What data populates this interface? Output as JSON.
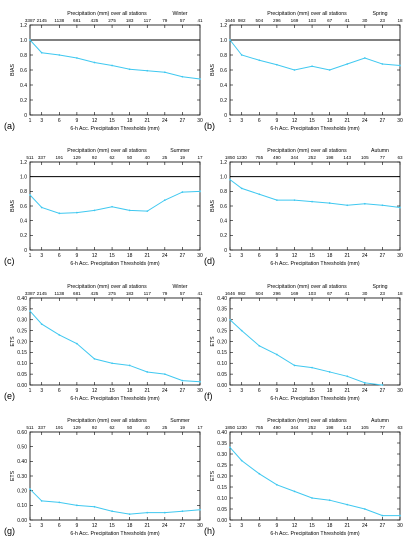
{
  "chart_data": [
    {
      "type": "line",
      "panel_label": "(a)",
      "season": "Winter",
      "xlabel": "6-h Acc. Precipitation Thresholds (mm)",
      "ylabel": "BIAS",
      "top_title": "Precipitation (mm) over all stations",
      "x": [
        1,
        3,
        6,
        9,
        12,
        15,
        18,
        21,
        24,
        27,
        30
      ],
      "x_ticks": [
        "1",
        "3",
        "6",
        "9",
        "12",
        "15",
        "18",
        "21",
        "24",
        "27",
        "30"
      ],
      "top_counts": [
        "3387",
        "2145",
        "1138",
        "681",
        "425",
        "275",
        "183",
        "117",
        "79",
        "57",
        "41"
      ],
      "ylim": [
        0,
        1.2
      ],
      "y_ticks": [
        "0",
        "0.2",
        "0.4",
        "0.6",
        "0.8",
        "1.0",
        "1.2"
      ],
      "ref_line": 1.0,
      "values": [
        1.0,
        0.83,
        0.8,
        0.76,
        0.7,
        0.66,
        0.61,
        0.59,
        0.57,
        0.51,
        0.48
      ]
    },
    {
      "type": "line",
      "panel_label": "(b)",
      "season": "Spring",
      "xlabel": "6-h Acc. Precipitation Thresholds (mm)",
      "ylabel": "BIAS",
      "top_title": "Precipitation (mm) over all stations",
      "x": [
        1,
        3,
        6,
        9,
        12,
        15,
        18,
        21,
        24,
        27,
        30
      ],
      "x_ticks": [
        "1",
        "3",
        "6",
        "9",
        "12",
        "15",
        "18",
        "21",
        "24",
        "27",
        "30"
      ],
      "top_counts": [
        "1646",
        "982",
        "504",
        "296",
        "169",
        "103",
        "67",
        "41",
        "30",
        "23",
        "18"
      ],
      "ylim": [
        0,
        1.2
      ],
      "y_ticks": [
        "0",
        "0.2",
        "0.4",
        "0.6",
        "0.8",
        "1.0",
        "1.2"
      ],
      "ref_line": 1.0,
      "values": [
        1.0,
        0.8,
        0.73,
        0.67,
        0.6,
        0.65,
        0.6,
        0.68,
        0.76,
        0.68,
        0.66
      ]
    },
    {
      "type": "line",
      "panel_label": "(c)",
      "season": "Summer",
      "xlabel": "6-h Acc. Precipitation Thresholds (mm)",
      "ylabel": "BIAS",
      "top_title": "Precipitation (mm) over all stations",
      "x": [
        1,
        3,
        6,
        9,
        12,
        15,
        18,
        21,
        24,
        27,
        30
      ],
      "x_ticks": [
        "1",
        "3",
        "6",
        "9",
        "12",
        "15",
        "18",
        "21",
        "24",
        "27",
        "30"
      ],
      "top_counts": [
        "511",
        "337",
        "191",
        "129",
        "92",
        "62",
        "50",
        "40",
        "25",
        "19",
        "17"
      ],
      "ylim": [
        0,
        1.2
      ],
      "y_ticks": [
        "0",
        "0.2",
        "0.4",
        "0.6",
        "0.8",
        "1.0",
        "1.2"
      ],
      "ref_line": 1.0,
      "values": [
        0.75,
        0.58,
        0.5,
        0.51,
        0.54,
        0.59,
        0.54,
        0.53,
        0.68,
        0.79,
        0.8
      ]
    },
    {
      "type": "line",
      "panel_label": "(d)",
      "season": "Autumn",
      "xlabel": "6-h Acc. Precipitation Thresholds (mm)",
      "ylabel": "BIAS",
      "top_title": "Precipitation (mm) over all stations",
      "x": [
        1,
        3,
        6,
        9,
        12,
        15,
        18,
        21,
        24,
        27,
        30
      ],
      "x_ticks": [
        "1",
        "3",
        "6",
        "9",
        "12",
        "15",
        "18",
        "21",
        "24",
        "27",
        "30"
      ],
      "top_counts": [
        "1850",
        "1230",
        "755",
        "490",
        "344",
        "252",
        "198",
        "143",
        "105",
        "77",
        "63"
      ],
      "ylim": [
        0,
        1.2
      ],
      "y_ticks": [
        "0",
        "0.2",
        "0.4",
        "0.6",
        "0.8",
        "1.0",
        "1.2"
      ],
      "ref_line": 1.0,
      "values": [
        0.96,
        0.84,
        0.76,
        0.68,
        0.68,
        0.66,
        0.64,
        0.61,
        0.63,
        0.61,
        0.58
      ]
    },
    {
      "type": "line",
      "panel_label": "(e)",
      "season": "Winter",
      "xlabel": "6-h Acc. Precipitation Thresholds (mm)",
      "ylabel": "ETS",
      "top_title": "Precipitation (mm) over all stations",
      "x": [
        1,
        3,
        6,
        9,
        12,
        15,
        18,
        21,
        24,
        27,
        30
      ],
      "x_ticks": [
        "1",
        "3",
        "6",
        "9",
        "12",
        "15",
        "18",
        "21",
        "24",
        "27",
        "30"
      ],
      "top_counts": [
        "3387",
        "2145",
        "1138",
        "681",
        "425",
        "275",
        "183",
        "117",
        "79",
        "57",
        "41"
      ],
      "ylim": [
        0,
        0.4
      ],
      "y_ticks": [
        "0.00",
        "0.05",
        "0.10",
        "0.15",
        "0.20",
        "0.25",
        "0.30",
        "0.35",
        "0.40"
      ],
      "ref_line": null,
      "values": [
        0.34,
        0.28,
        0.23,
        0.19,
        0.12,
        0.1,
        0.09,
        0.06,
        0.05,
        0.02,
        0.015
      ]
    },
    {
      "type": "line",
      "panel_label": "(f)",
      "season": "Spring",
      "xlabel": "6-h Acc. Precipitation Thresholds (mm)",
      "ylabel": "ETS",
      "top_title": "Precipitation (mm) over all stations",
      "x": [
        1,
        3,
        6,
        9,
        12,
        15,
        18,
        21,
        24,
        27,
        30
      ],
      "x_ticks": [
        "1",
        "3",
        "6",
        "9",
        "12",
        "15",
        "18",
        "21",
        "24",
        "27",
        "30"
      ],
      "top_counts": [
        "1646",
        "982",
        "504",
        "296",
        "169",
        "103",
        "67",
        "41",
        "30",
        "23",
        "18"
      ],
      "ylim": [
        0,
        0.4
      ],
      "y_ticks": [
        "0.00",
        "0.05",
        "0.10",
        "0.15",
        "0.20",
        "0.25",
        "0.30",
        "0.35",
        "0.40"
      ],
      "ref_line": null,
      "values": [
        0.3,
        0.25,
        0.18,
        0.14,
        0.09,
        0.08,
        0.06,
        0.04,
        0.01,
        0.0,
        null
      ]
    },
    {
      "type": "line",
      "panel_label": "(g)",
      "season": "Summer",
      "xlabel": "6-h Acc. Precipitation Thresholds (mm)",
      "ylabel": "ETS",
      "top_title": "Precipitation (mm) over all stations",
      "x": [
        1,
        3,
        6,
        9,
        12,
        15,
        18,
        21,
        24,
        27,
        30
      ],
      "x_ticks": [
        "1",
        "3",
        "6",
        "9",
        "12",
        "15",
        "18",
        "21",
        "24",
        "27",
        "30"
      ],
      "top_counts": [
        "511",
        "337",
        "191",
        "129",
        "92",
        "62",
        "50",
        "40",
        "25",
        "19",
        "17"
      ],
      "ylim": [
        0,
        0.6
      ],
      "y_ticks": [
        "0.00",
        "0.10",
        "0.20",
        "0.30",
        "0.40",
        "0.50",
        "0.60"
      ],
      "ref_line": null,
      "values": [
        0.21,
        0.13,
        0.12,
        0.1,
        0.09,
        0.06,
        0.04,
        0.05,
        0.05,
        0.06,
        0.07
      ]
    },
    {
      "type": "line",
      "panel_label": "(h)",
      "season": "Autumn",
      "xlabel": "6-h Acc. Precipitation Thresholds (mm)",
      "ylabel": "ETS",
      "top_title": "Precipitation (mm) over all stations",
      "x": [
        1,
        3,
        6,
        9,
        12,
        15,
        18,
        21,
        24,
        27,
        30
      ],
      "x_ticks": [
        "1",
        "3",
        "6",
        "9",
        "12",
        "15",
        "18",
        "21",
        "24",
        "27",
        "30"
      ],
      "top_counts": [
        "1850",
        "1230",
        "755",
        "490",
        "344",
        "252",
        "198",
        "143",
        "105",
        "77",
        "63"
      ],
      "ylim": [
        0,
        0.4
      ],
      "y_ticks": [
        "0.00",
        "0.05",
        "0.10",
        "0.15",
        "0.20",
        "0.25",
        "0.30",
        "0.35",
        "0.40"
      ],
      "ref_line": null,
      "values": [
        0.33,
        0.27,
        0.21,
        0.16,
        0.13,
        0.1,
        0.09,
        0.07,
        0.05,
        0.02,
        0.02
      ]
    }
  ],
  "colors": {
    "series": "#3fc8f0",
    "ref_line": "#000000",
    "axis": "#000000"
  }
}
